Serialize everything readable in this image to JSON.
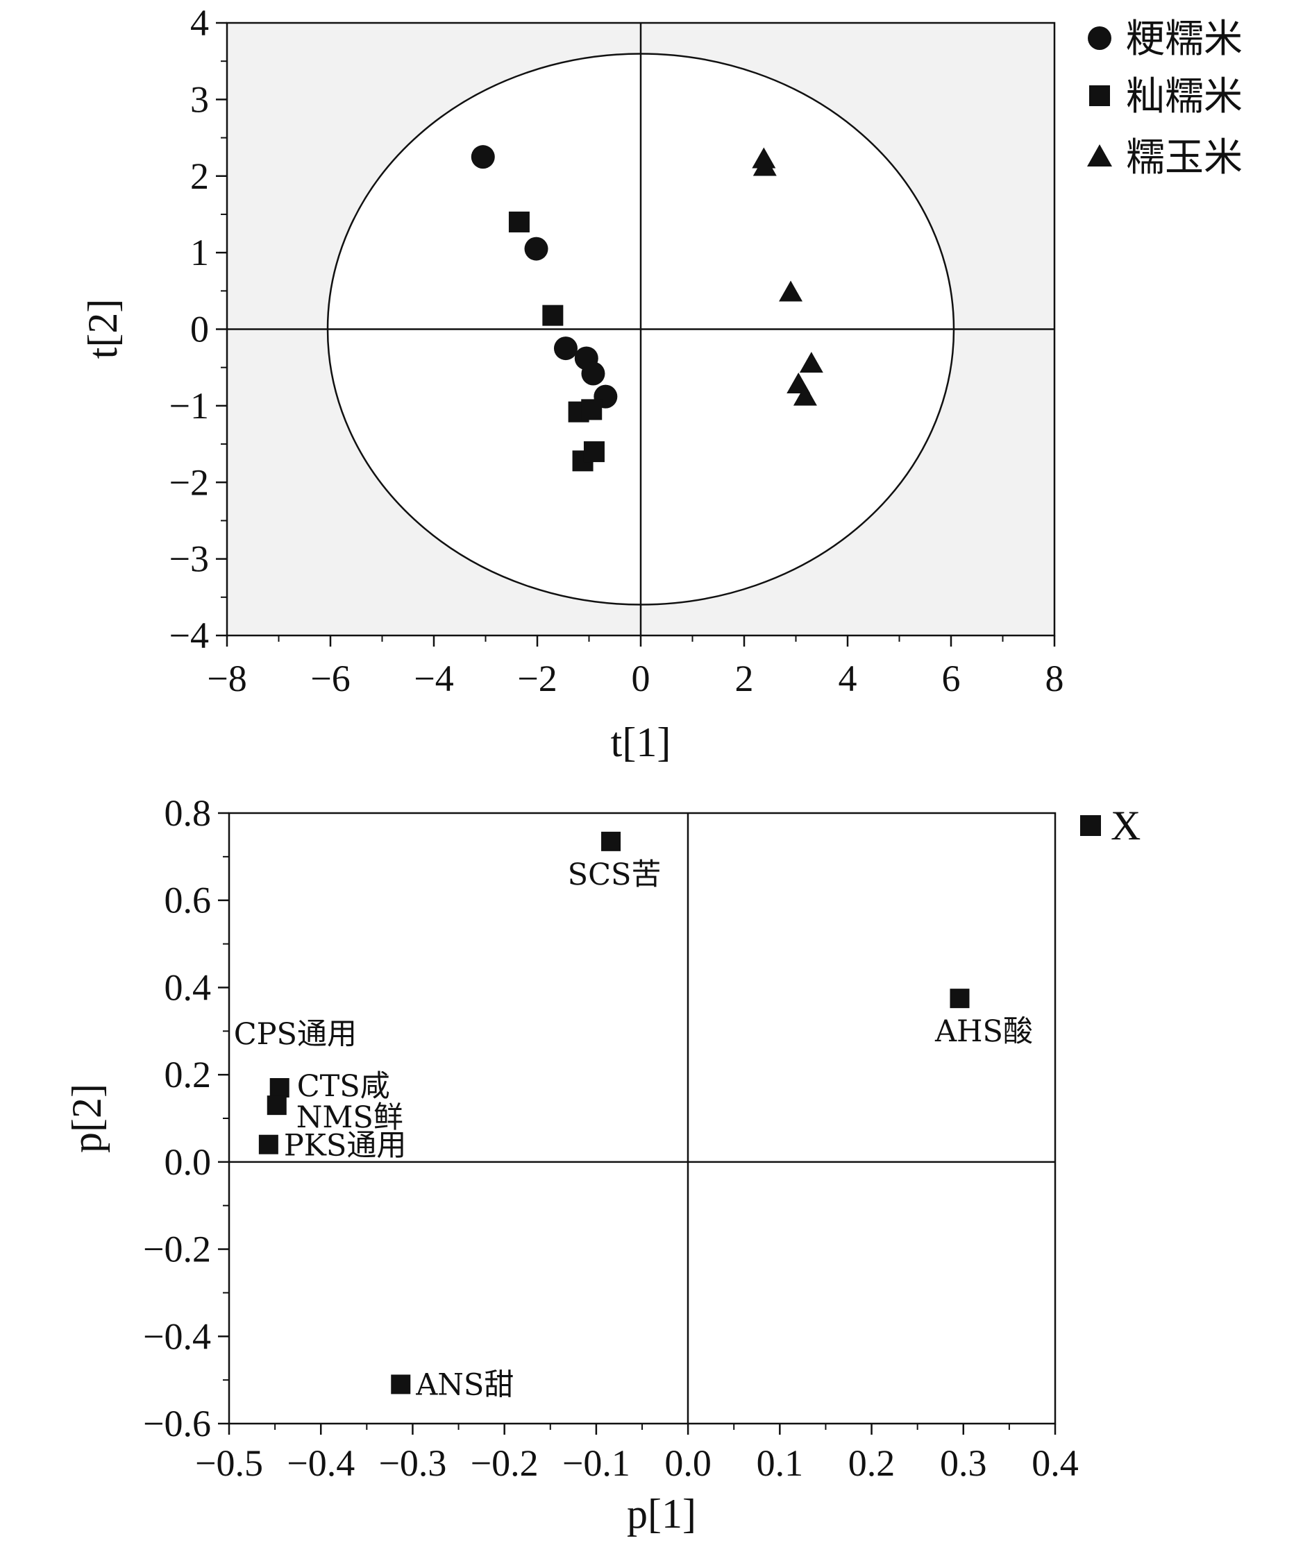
{
  "chart_data": [
    {
      "type": "scatter",
      "xlabel": "t[1]",
      "ylabel": "t[2]",
      "xlim": [
        -8,
        8
      ],
      "ylim": [
        -4,
        4
      ],
      "xticks": [
        "−8",
        "−6",
        "−4",
        "−2",
        "0",
        "2",
        "4",
        "6",
        "8"
      ],
      "yticks": [
        "4",
        "3",
        "2",
        "1",
        "0",
        "−1",
        "−2",
        "−3",
        "−4"
      ],
      "ellipse": {
        "rx": 6.05,
        "ry": 3.6
      },
      "background": "#f2f2f2",
      "legend_position": "top-right",
      "series": [
        {
          "name": "粳糯米",
          "marker": "circle",
          "points": [
            [
              -3.05,
              2.25
            ],
            [
              -2.02,
              1.05
            ],
            [
              -1.45,
              -0.25
            ],
            [
              -1.05,
              -0.38
            ],
            [
              -0.92,
              -0.58
            ],
            [
              -0.68,
              -0.88
            ]
          ]
        },
        {
          "name": "籼糯米",
          "marker": "square",
          "points": [
            [
              -2.35,
              1.4
            ],
            [
              -1.7,
              0.18
            ],
            [
              -1.2,
              -1.08
            ],
            [
              -0.95,
              -1.05
            ],
            [
              -1.12,
              -1.72
            ],
            [
              -0.9,
              -1.6
            ]
          ]
        },
        {
          "name": "糯玉米",
          "marker": "triangle",
          "points": [
            [
              2.38,
              2.22
            ],
            [
              2.4,
              2.12
            ],
            [
              2.9,
              0.48
            ],
            [
              3.3,
              -0.45
            ],
            [
              3.05,
              -0.72
            ],
            [
              3.18,
              -0.88
            ]
          ]
        }
      ]
    },
    {
      "type": "scatter",
      "xlabel": "p[1]",
      "ylabel": "p[2]",
      "xlim": [
        -0.5,
        0.4
      ],
      "ylim": [
        -0.6,
        0.8
      ],
      "xticks": [
        "−0.5",
        "−0.4",
        "−0.3",
        "−0.2",
        "−0.1",
        "0.0",
        "0.1",
        "0.2",
        "0.3",
        "0.4"
      ],
      "yticks": [
        "0.8",
        "0.6",
        "0.4",
        "0.2",
        "0.0",
        "−0.2",
        "−0.4",
        "−0.6"
      ],
      "legend_position": "top-right",
      "series": [
        {
          "name": "X",
          "marker": "square",
          "points": [
            {
              "x": -0.084,
              "y": 0.735,
              "label": "SCS苦"
            },
            {
              "x": 0.296,
              "y": 0.375,
              "label": "AHS酸"
            },
            {
              "x": -0.445,
              "y": 0.17,
              "label": "CTS咸"
            },
            {
              "x": -0.448,
              "y": 0.13,
              "label": "NMS鲜"
            },
            {
              "x": -0.457,
              "y": 0.04,
              "label": "PKS通用"
            },
            {
              "x": -0.313,
              "y": -0.51,
              "label": "ANS甜"
            },
            {
              "x": -0.445,
              "y": 0.17,
              "label": "CPS通用"
            }
          ]
        }
      ]
    }
  ]
}
